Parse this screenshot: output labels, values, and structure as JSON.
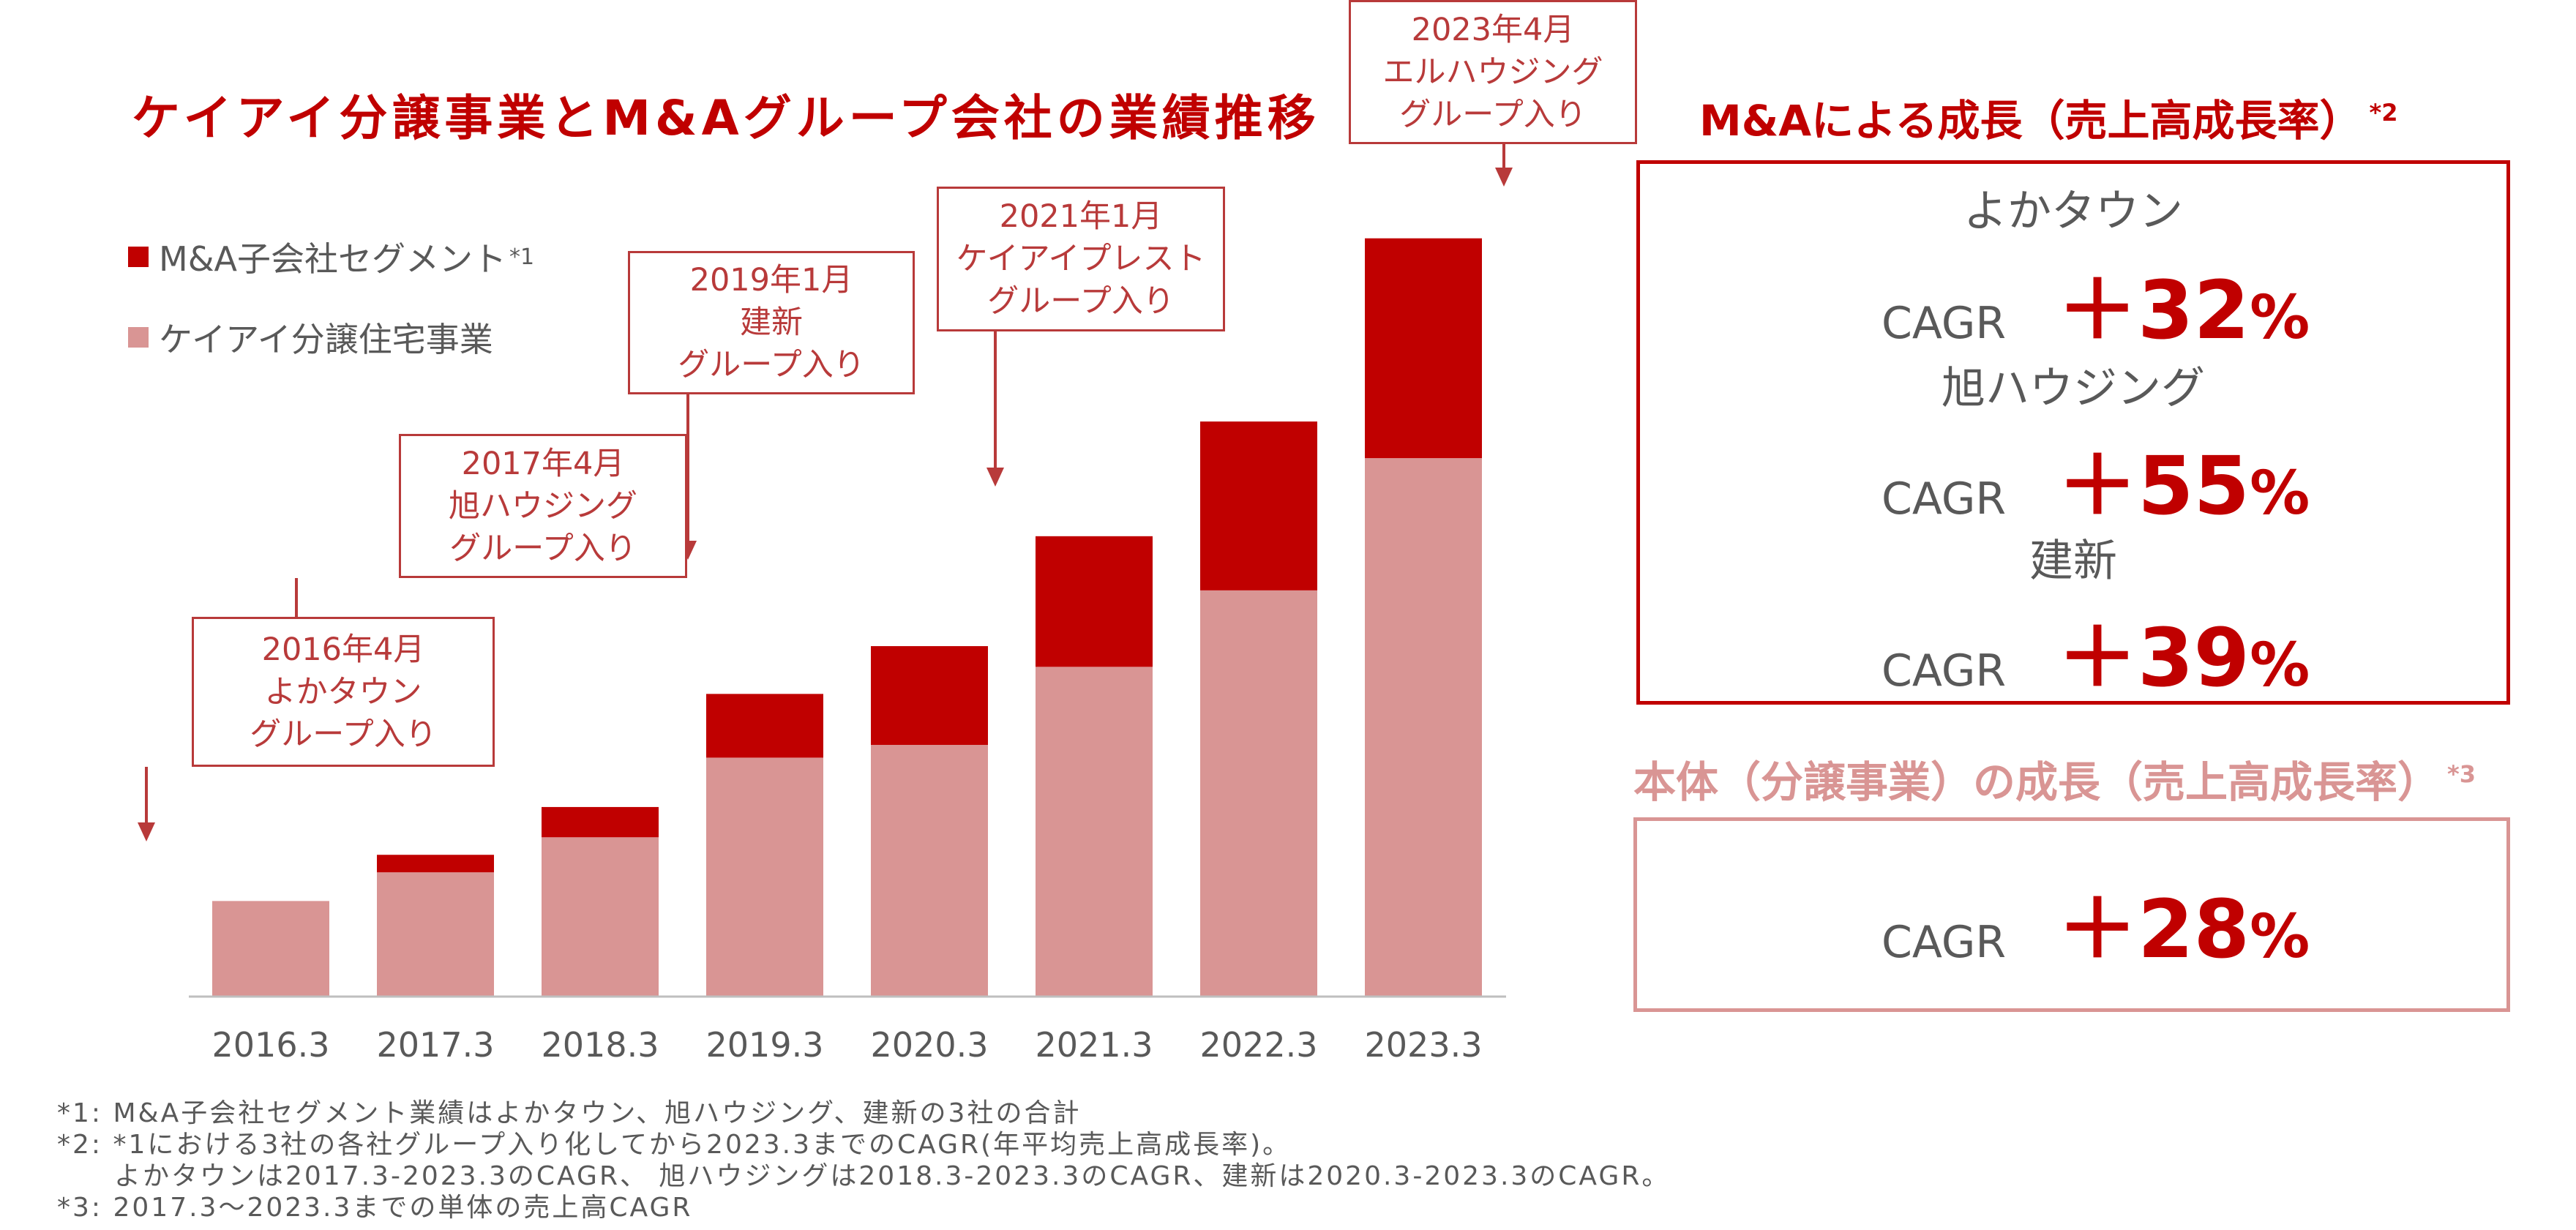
{
  "title": "ケイアイ分譲事業とM&Aグループ会社の業績推移",
  "legend": [
    {
      "label": "M&A子会社セグメント",
      "sup": "*1",
      "color": "#c00000"
    },
    {
      "label": "ケイアイ分譲住宅事業",
      "sup": "",
      "color": "#d99594"
    }
  ],
  "chart_data": {
    "type": "bar",
    "stacked": true,
    "categories": [
      "2016.3",
      "2017.3",
      "2018.3",
      "2019.3",
      "2020.3",
      "2021.3",
      "2022.3",
      "2023.3"
    ],
    "series": [
      {
        "name": "ケイアイ分譲住宅事業",
        "color": "#d99594",
        "values": [
          60,
          78,
          100,
          150,
          158,
          207,
          255,
          338
        ]
      },
      {
        "name": "M&A子会社セグメント",
        "color": "#c00000",
        "values": [
          0,
          11,
          19,
          40,
          62,
          82,
          106,
          138
        ]
      }
    ],
    "ylim": [
      0,
      480
    ],
    "grid": false
  },
  "callouts": [
    {
      "lines": [
        "2016年4月",
        "よかタウン",
        "グループ入り"
      ],
      "category": "2016.3"
    },
    {
      "lines": [
        "2017年4月",
        "旭ハウジング",
        "グループ入り"
      ],
      "category": "2017.3"
    },
    {
      "lines": [
        "2019年1月",
        "建新",
        "グループ入り"
      ],
      "category": "2019.3"
    },
    {
      "lines": [
        "2021年1月",
        "ケイアイプレスト",
        "グループ入り"
      ],
      "category": "2021.3"
    },
    {
      "lines": [
        "2023年4月",
        "エルハウジング",
        "グループ入り"
      ],
      "category": "2023.3"
    }
  ],
  "ma_panel": {
    "title": "M&Aによる成長（売上高成長率）",
    "title_sup": "*2",
    "cagr_label": "CAGR",
    "items": [
      {
        "name": "よかタウン",
        "value": "＋32",
        "unit": "%"
      },
      {
        "name": "旭ハウジング",
        "value": "＋55",
        "unit": "%"
      },
      {
        "name": "建新",
        "value": "＋39",
        "unit": "%"
      }
    ]
  },
  "core_panel": {
    "title": "本体（分譲事業）の成長（売上高成長率）",
    "title_sup": "*3",
    "cagr_label": "CAGR",
    "value": "＋28",
    "unit": "%"
  },
  "footnotes": [
    "*1: M&A子会社セグメント業績はよかタウン、旭ハウジング、建新の3社の合計",
    "*2: *1における3社の各社グループ入り化してから2023.3までのCAGR(年平均売上高成長率)。",
    "　　よかタウンは2017.3-2023.3のCAGR、 旭ハウジングは2018.3-2023.3のCAGR、建新は2020.3-2023.3のCAGR。",
    "*3: 2017.3～2023.3までの単体の売上高CAGR"
  ],
  "colors": {
    "accent": "#c00000",
    "accent_light": "#d99594",
    "callout": "#b83a3a",
    "text": "#595959"
  }
}
